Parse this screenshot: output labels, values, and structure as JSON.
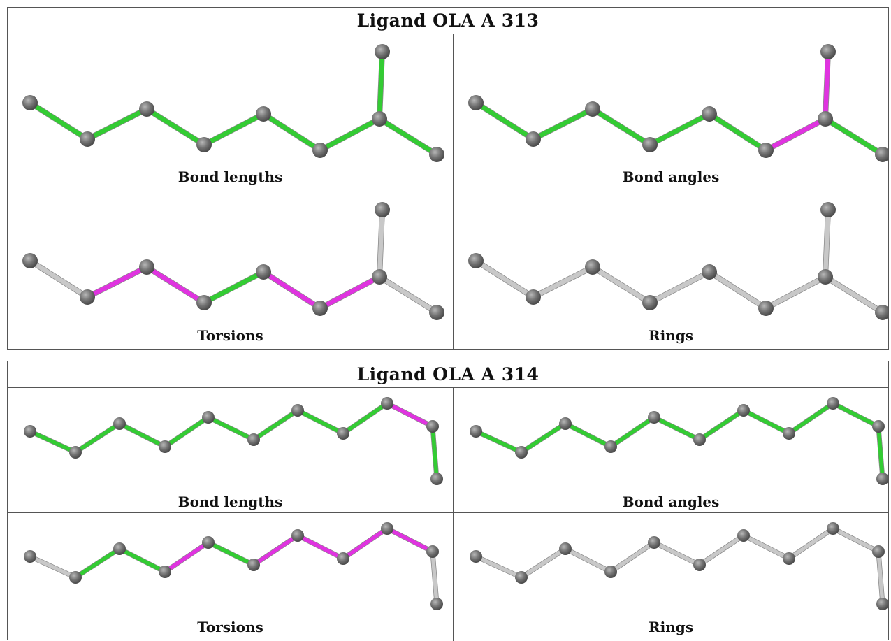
{
  "colors": {
    "ok": "#33cc33",
    "outlier": "#e033e0",
    "none": "#c8c8c8",
    "atom": "#737373"
  },
  "ligands": [
    {
      "title": "Ligand OLA A 313",
      "panels": [
        {
          "caption": "Bond lengths",
          "bonds": [
            "ok",
            "ok",
            "ok",
            "ok",
            "ok",
            "ok",
            "ok",
            "ok"
          ]
        },
        {
          "caption": "Bond angles",
          "bonds": [
            "ok",
            "ok",
            "ok",
            "ok",
            "ok",
            "outlier",
            "outlier",
            "ok"
          ]
        },
        {
          "caption": "Torsions",
          "bonds": [
            "none",
            "outlier",
            "outlier",
            "ok",
            "outlier",
            "outlier",
            "none",
            "none"
          ]
        },
        {
          "caption": "Rings",
          "bonds": [
            "none",
            "none",
            "none",
            "none",
            "none",
            "none",
            "none",
            "none"
          ]
        }
      ]
    },
    {
      "title": "Ligand OLA A 314",
      "panels": [
        {
          "caption": "Bond lengths",
          "bonds": [
            "ok",
            "ok",
            "ok",
            "ok",
            "ok",
            "ok",
            "ok",
            "ok",
            "outlier",
            "ok"
          ]
        },
        {
          "caption": "Bond angles",
          "bonds": [
            "ok",
            "ok",
            "ok",
            "ok",
            "ok",
            "ok",
            "ok",
            "ok",
            "ok",
            "ok"
          ]
        },
        {
          "caption": "Torsions",
          "bonds": [
            "none",
            "ok",
            "ok",
            "outlier",
            "ok",
            "outlier",
            "outlier",
            "outlier",
            "outlier",
            "none"
          ]
        },
        {
          "caption": "Rings",
          "bonds": [
            "none",
            "none",
            "none",
            "none",
            "none",
            "none",
            "none",
            "none",
            "none",
            "none"
          ]
        }
      ]
    }
  ]
}
